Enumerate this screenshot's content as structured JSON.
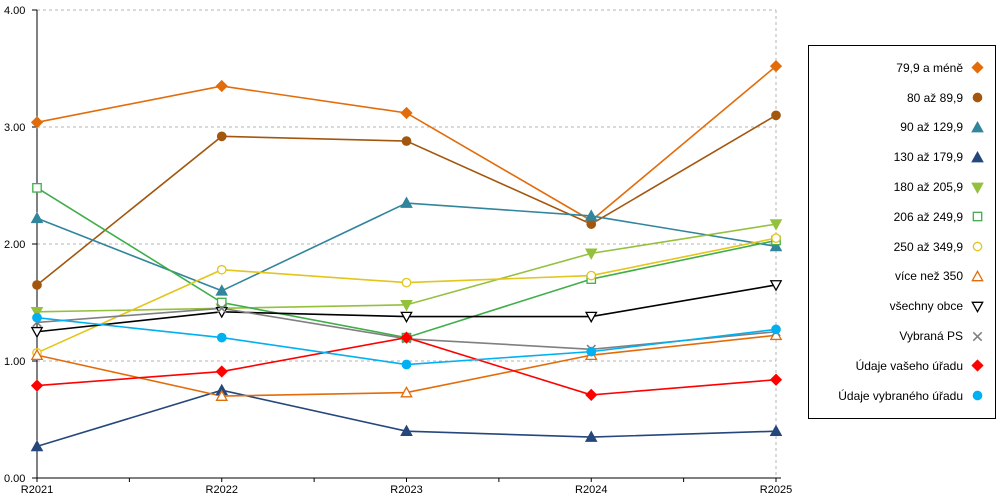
{
  "chart_data": {
    "type": "line",
    "title": "",
    "xlabel": "",
    "ylabel": "",
    "categories": [
      "R2021",
      "R2022",
      "R2023",
      "R2024",
      "R2025"
    ],
    "ylim": [
      0,
      4
    ],
    "yticks": [
      0,
      1,
      2,
      3,
      4
    ],
    "ytick_labels": [
      "0.00",
      "1.00",
      "2.00",
      "3.00",
      "4.00"
    ],
    "grid": "dashed-horizontal",
    "legend_position": "right",
    "series": [
      {
        "name": "79,9 a méně",
        "color": "#E36C0A",
        "marker": "diamond",
        "filled": true,
        "values": [
          3.04,
          3.35,
          3.12,
          2.2,
          3.52
        ]
      },
      {
        "name": "80 až 89,9",
        "color": "#A3570E",
        "marker": "circle",
        "filled": true,
        "values": [
          1.65,
          2.92,
          2.88,
          2.17,
          3.1
        ]
      },
      {
        "name": "90 až 129,9",
        "color": "#31859C",
        "marker": "triangle-up",
        "filled": true,
        "values": [
          2.22,
          1.6,
          2.35,
          2.24,
          1.98
        ]
      },
      {
        "name": "130 až 179,9",
        "color": "#25477B",
        "marker": "triangle-up",
        "filled": true,
        "values": [
          0.27,
          0.75,
          0.4,
          0.35,
          0.4
        ]
      },
      {
        "name": "180 až 205,9",
        "color": "#94C13D",
        "marker": "triangle-down",
        "filled": true,
        "values": [
          1.42,
          1.45,
          1.48,
          1.92,
          2.17
        ]
      },
      {
        "name": "206 až 249,9",
        "color": "#3FAE49",
        "marker": "square",
        "filled": false,
        "values": [
          2.48,
          1.5,
          1.2,
          1.7,
          2.03
        ]
      },
      {
        "name": "250 až 349,9",
        "color": "#E3C51C",
        "marker": "circle",
        "filled": false,
        "values": [
          1.07,
          1.78,
          1.67,
          1.73,
          2.05
        ]
      },
      {
        "name": "více než 350",
        "color": "#E36C0A",
        "marker": "triangle-up",
        "filled": false,
        "values": [
          1.05,
          0.7,
          0.73,
          1.05,
          1.22
        ]
      },
      {
        "name": "všechny obce",
        "color": "#000000",
        "marker": "triangle-down",
        "filled": false,
        "values": [
          1.25,
          1.42,
          1.38,
          1.38,
          1.65
        ]
      },
      {
        "name": "Vybraná PS",
        "color": "#808080",
        "marker": "x",
        "filled": false,
        "values": [
          1.33,
          1.45,
          1.19,
          1.1,
          1.25
        ]
      },
      {
        "name": "Údaje vašeho úřadu",
        "color": "#FF0000",
        "marker": "diamond",
        "filled": true,
        "values": [
          0.79,
          0.91,
          1.2,
          0.71,
          0.84
        ]
      },
      {
        "name": "Údaje vybraného úřadu",
        "color": "#00B0F0",
        "marker": "circle",
        "filled": true,
        "values": [
          1.37,
          1.2,
          0.97,
          1.08,
          1.27
        ]
      }
    ]
  }
}
